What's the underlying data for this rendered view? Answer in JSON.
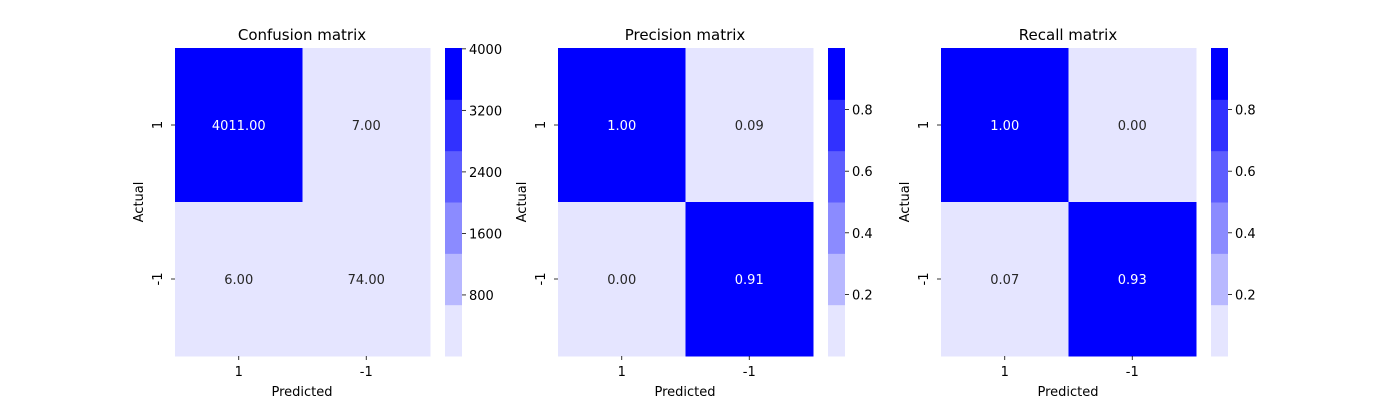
{
  "colors": {
    "levels": [
      "#e5e5ff",
      "#b8b8ff",
      "#8b8bff",
      "#5e5eff",
      "#3131ff",
      "#0000ff"
    ],
    "text_on_dark": "#ffffff",
    "text_on_light": "#262626"
  },
  "chart_data": [
    {
      "type": "heatmap",
      "title": "Confusion matrix",
      "xlabel": "Predicted",
      "ylabel": "Actual",
      "x_categories": [
        "1",
        "-1"
      ],
      "y_categories": [
        "1",
        "-1"
      ],
      "values": [
        [
          4011.0,
          7.0
        ],
        [
          6.0,
          74.0
        ]
      ],
      "cell_labels": [
        [
          "4011.00",
          "7.00"
        ],
        [
          "6.00",
          "74.00"
        ]
      ],
      "vmin": 6.0,
      "vmax": 4011.0,
      "colorbar_ticks": [
        800,
        1600,
        2400,
        3200,
        4000
      ],
      "colorbar_tick_labels": [
        "800",
        "1600",
        "2400",
        "3200",
        "4000"
      ]
    },
    {
      "type": "heatmap",
      "title": "Precision matrix",
      "xlabel": "Predicted",
      "ylabel": "Actual",
      "x_categories": [
        "1",
        "-1"
      ],
      "y_categories": [
        "1",
        "-1"
      ],
      "values": [
        [
          1.0,
          0.09
        ],
        [
          0.0,
          0.91
        ]
      ],
      "cell_labels": [
        [
          "1.00",
          "0.09"
        ],
        [
          "0.00",
          "0.91"
        ]
      ],
      "vmin": 0.0,
      "vmax": 1.0,
      "colorbar_ticks": [
        0.2,
        0.4,
        0.6,
        0.8
      ],
      "colorbar_tick_labels": [
        "0.2",
        "0.4",
        "0.6",
        "0.8"
      ]
    },
    {
      "type": "heatmap",
      "title": "Recall matrix",
      "xlabel": "Predicted",
      "ylabel": "Actual",
      "x_categories": [
        "1",
        "-1"
      ],
      "y_categories": [
        "1",
        "-1"
      ],
      "values": [
        [
          1.0,
          0.0
        ],
        [
          0.07,
          0.93
        ]
      ],
      "cell_labels": [
        [
          "1.00",
          "0.00"
        ],
        [
          "0.07",
          "0.93"
        ]
      ],
      "vmin": 0.0,
      "vmax": 1.0,
      "colorbar_ticks": [
        0.2,
        0.4,
        0.6,
        0.8
      ],
      "colorbar_tick_labels": [
        "0.2",
        "0.4",
        "0.6",
        "0.8"
      ]
    }
  ]
}
